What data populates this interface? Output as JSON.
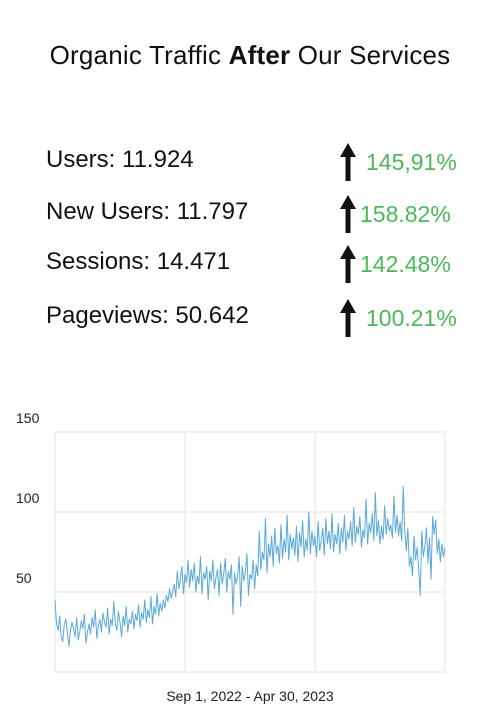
{
  "heading": {
    "prefix": "Organic Traffic ",
    "bold": "After",
    "suffix": " Our Services"
  },
  "stats": [
    {
      "label": "Users: 11.924",
      "change": "145,91%",
      "direction": "up"
    },
    {
      "label": "New Users: 11.797",
      "change": "158.82%",
      "direction": "up"
    },
    {
      "label": "Sessions: 14.471",
      "change": "142.48%",
      "direction": "up"
    },
    {
      "label": "Pageviews: 50.642",
      "change": "100.21%",
      "direction": "up"
    }
  ],
  "colors": {
    "positive": "#4cb85a",
    "line": "#5aa9d6",
    "grid": "#e3e3e3"
  },
  "chart_data": {
    "type": "line",
    "xlabel": "Sep 1, 2022 - Apr 30, 2023",
    "ylabel": "",
    "x_range": [
      "2022-09-01",
      "2023-04-30"
    ],
    "ylim": [
      0,
      150
    ],
    "yticks": [
      50,
      100,
      150
    ],
    "grid": true,
    "series": [
      {
        "values": [
          45,
          30,
          26,
          35,
          22,
          19,
          30,
          33,
          25,
          16,
          26,
          31,
          27,
          22,
          34,
          20,
          25,
          32,
          27,
          36,
          18,
          25,
          30,
          24,
          34,
          28,
          39,
          21,
          29,
          33,
          25,
          37,
          31,
          28,
          40,
          24,
          33,
          29,
          44,
          30,
          26,
          38,
          31,
          22,
          35,
          29,
          41,
          25,
          33,
          30,
          38,
          27,
          36,
          32,
          42,
          28,
          37,
          33,
          45,
          31,
          39,
          34,
          47,
          30,
          41,
          36,
          49,
          35,
          43,
          38,
          45,
          40,
          48,
          44,
          52,
          46,
          50,
          55,
          47,
          63,
          52,
          58,
          66,
          49,
          61,
          56,
          70,
          53,
          64,
          57,
          68,
          50,
          60,
          55,
          72,
          49,
          62,
          58,
          66,
          45,
          63,
          57,
          70,
          52,
          59,
          64,
          48,
          68,
          55,
          61,
          71,
          50,
          63,
          58,
          67,
          36,
          62,
          55,
          60,
          72,
          41,
          66,
          57,
          62,
          74,
          48,
          61,
          58,
          70,
          52,
          67,
          60,
          88,
          64,
          75,
          70,
          96,
          62,
          80,
          72,
          85,
          66,
          90,
          74,
          79,
          68,
          92,
          71,
          83,
          75,
          98,
          70,
          86,
          77,
          84,
          73,
          91,
          69,
          87,
          78,
          95,
          72,
          83,
          76,
          100,
          74,
          88,
          79,
          85,
          72,
          94,
          76,
          82,
          90,
          73,
          96,
          80,
          88,
          77,
          99,
          75,
          86,
          80,
          93,
          74,
          90,
          81,
          98,
          76,
          88,
          83,
          94,
          79,
          103,
          81,
          91,
          86,
          97,
          78,
          89,
          84,
          108,
          80,
          93,
          87,
          99,
          82,
          112,
          85,
          95,
          80,
          91,
          83,
          104,
          86,
          96,
          88,
          92,
          84,
          110,
          87,
          98,
          85,
          94,
          82,
          116,
          88,
          76,
          90,
          66,
          72,
          60,
          85,
          70,
          78,
          64,
          48,
          88,
          72,
          79,
          90,
          68,
          84,
          58,
          97,
          86,
          95,
          74,
          83,
          69,
          80,
          72,
          78
        ]
      }
    ]
  }
}
